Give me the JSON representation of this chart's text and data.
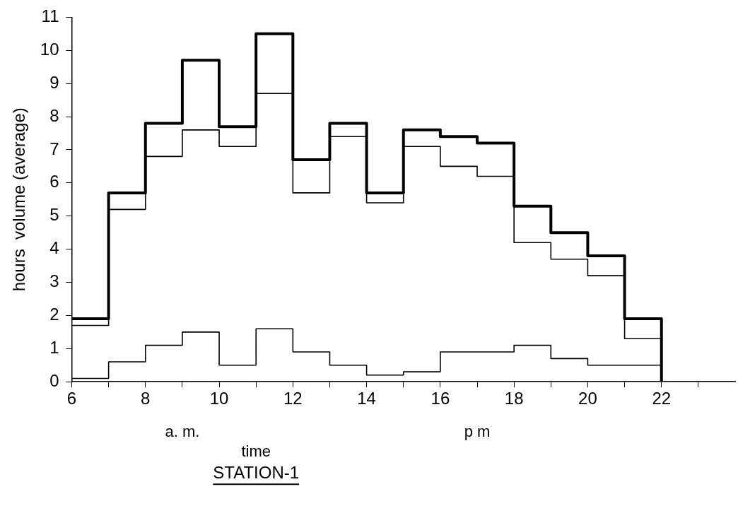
{
  "chart_data": {
    "type": "step",
    "title": "STATION-1",
    "xlabel": "time",
    "ylabel": "hours  volume (average)",
    "annotations": [
      "a. m.",
      "p m"
    ],
    "x": [
      6,
      7,
      8,
      9,
      10,
      11,
      12,
      13,
      14,
      15,
      16,
      17,
      18,
      19,
      20,
      21,
      22
    ],
    "series": [
      {
        "color": "#000000",
        "values": [
          1.9,
          5.7,
          7.8,
          9.7,
          7.7,
          10.5,
          6.7,
          7.8,
          5.7,
          7.6,
          7.4,
          7.2,
          5.3,
          4.5,
          3.8,
          1.9,
          0
        ]
      },
      {
        "color": "#000000",
        "values": [
          1.7,
          5.2,
          6.8,
          7.6,
          7.1,
          8.7,
          5.7,
          7.4,
          5.4,
          7.1,
          6.5,
          6.2,
          4.2,
          3.7,
          3.2,
          1.3,
          0
        ]
      },
      {
        "color": "#000000",
        "values": [
          0.1,
          0.6,
          1.1,
          1.5,
          0.5,
          1.6,
          0.9,
          0.5,
          0.2,
          0.3,
          0.9,
          0.9,
          1.1,
          0.7,
          0.5,
          0.5,
          0
        ]
      }
    ],
    "xlim": [
      6,
      24
    ],
    "xticks": [
      6,
      {
        "value": 7,
        "label": null
      },
      8,
      {
        "value": 9,
        "label": null
      },
      10,
      {
        "value": 11,
        "label": null
      },
      12,
      {
        "value": 13,
        "label": null
      },
      14,
      {
        "value": 15,
        "label": null
      },
      16,
      {
        "value": 17,
        "label": null
      },
      18,
      {
        "value": 19,
        "label": null
      },
      20,
      {
        "value": 21,
        "label": null
      },
      22,
      {
        "value": 23,
        "label": null
      }
    ],
    "ylim": [
      0,
      11
    ],
    "yticks": [
      0,
      1,
      2,
      3,
      4,
      5,
      6,
      7,
      8,
      9,
      10,
      11
    ],
    "grid": false,
    "legend": false,
    "marker": "none",
    "line_style": "solid"
  }
}
